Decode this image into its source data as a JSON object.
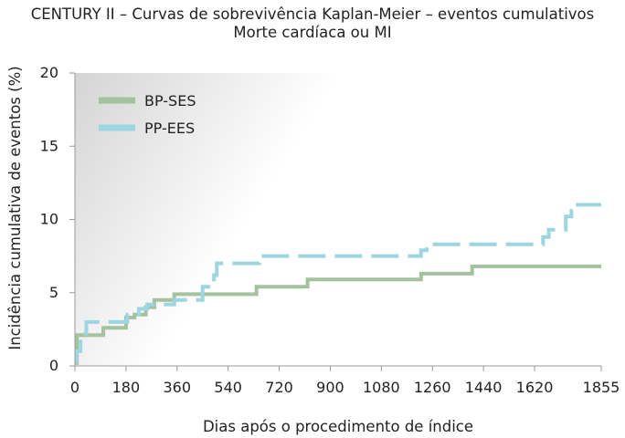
{
  "chart_data": {
    "type": "line",
    "title": "CENTURY II – Curvas de sobrevivência Kaplan-Meier – eventos cumulativos",
    "subtitle": "Morte cardíaca ou MI",
    "xlabel": "Dias após o procedimento de índice",
    "ylabel": "Incidência cumulativa de eventos (%)",
    "xlim": [
      0,
      1855
    ],
    "ylim": [
      0,
      20
    ],
    "xticks": [
      0,
      180,
      360,
      540,
      720,
      900,
      1080,
      1260,
      1440,
      1620,
      1855
    ],
    "yticks": [
      0,
      5,
      10,
      15,
      20
    ],
    "grid": false,
    "legend_position": "top-left",
    "series": [
      {
        "name": "BP-SES",
        "color": "#a3c29d",
        "style": "solid",
        "steps": [
          [
            0,
            0.2
          ],
          [
            7,
            2.1
          ],
          [
            100,
            2.6
          ],
          [
            180,
            3.3
          ],
          [
            210,
            3.5
          ],
          [
            250,
            4.0
          ],
          [
            280,
            4.5
          ],
          [
            350,
            4.9
          ],
          [
            640,
            5.4
          ],
          [
            820,
            5.9
          ],
          [
            1220,
            6.3
          ],
          [
            1400,
            6.8
          ],
          [
            1855,
            6.8
          ]
        ]
      },
      {
        "name": "PP-EES",
        "color": "#9dd5e0",
        "style": "dashed",
        "steps": [
          [
            0,
            0.3
          ],
          [
            5,
            1.0
          ],
          [
            20,
            2.2
          ],
          [
            40,
            3.0
          ],
          [
            185,
            3.5
          ],
          [
            225,
            3.9
          ],
          [
            255,
            4.2
          ],
          [
            350,
            4.5
          ],
          [
            450,
            5.4
          ],
          [
            490,
            6.2
          ],
          [
            500,
            7.0
          ],
          [
            650,
            7.5
          ],
          [
            1220,
            7.9
          ],
          [
            1240,
            8.3
          ],
          [
            1650,
            8.8
          ],
          [
            1670,
            9.3
          ],
          [
            1730,
            10.2
          ],
          [
            1750,
            10.6
          ],
          [
            1760,
            11.0
          ],
          [
            1855,
            11.0
          ]
        ]
      }
    ]
  }
}
